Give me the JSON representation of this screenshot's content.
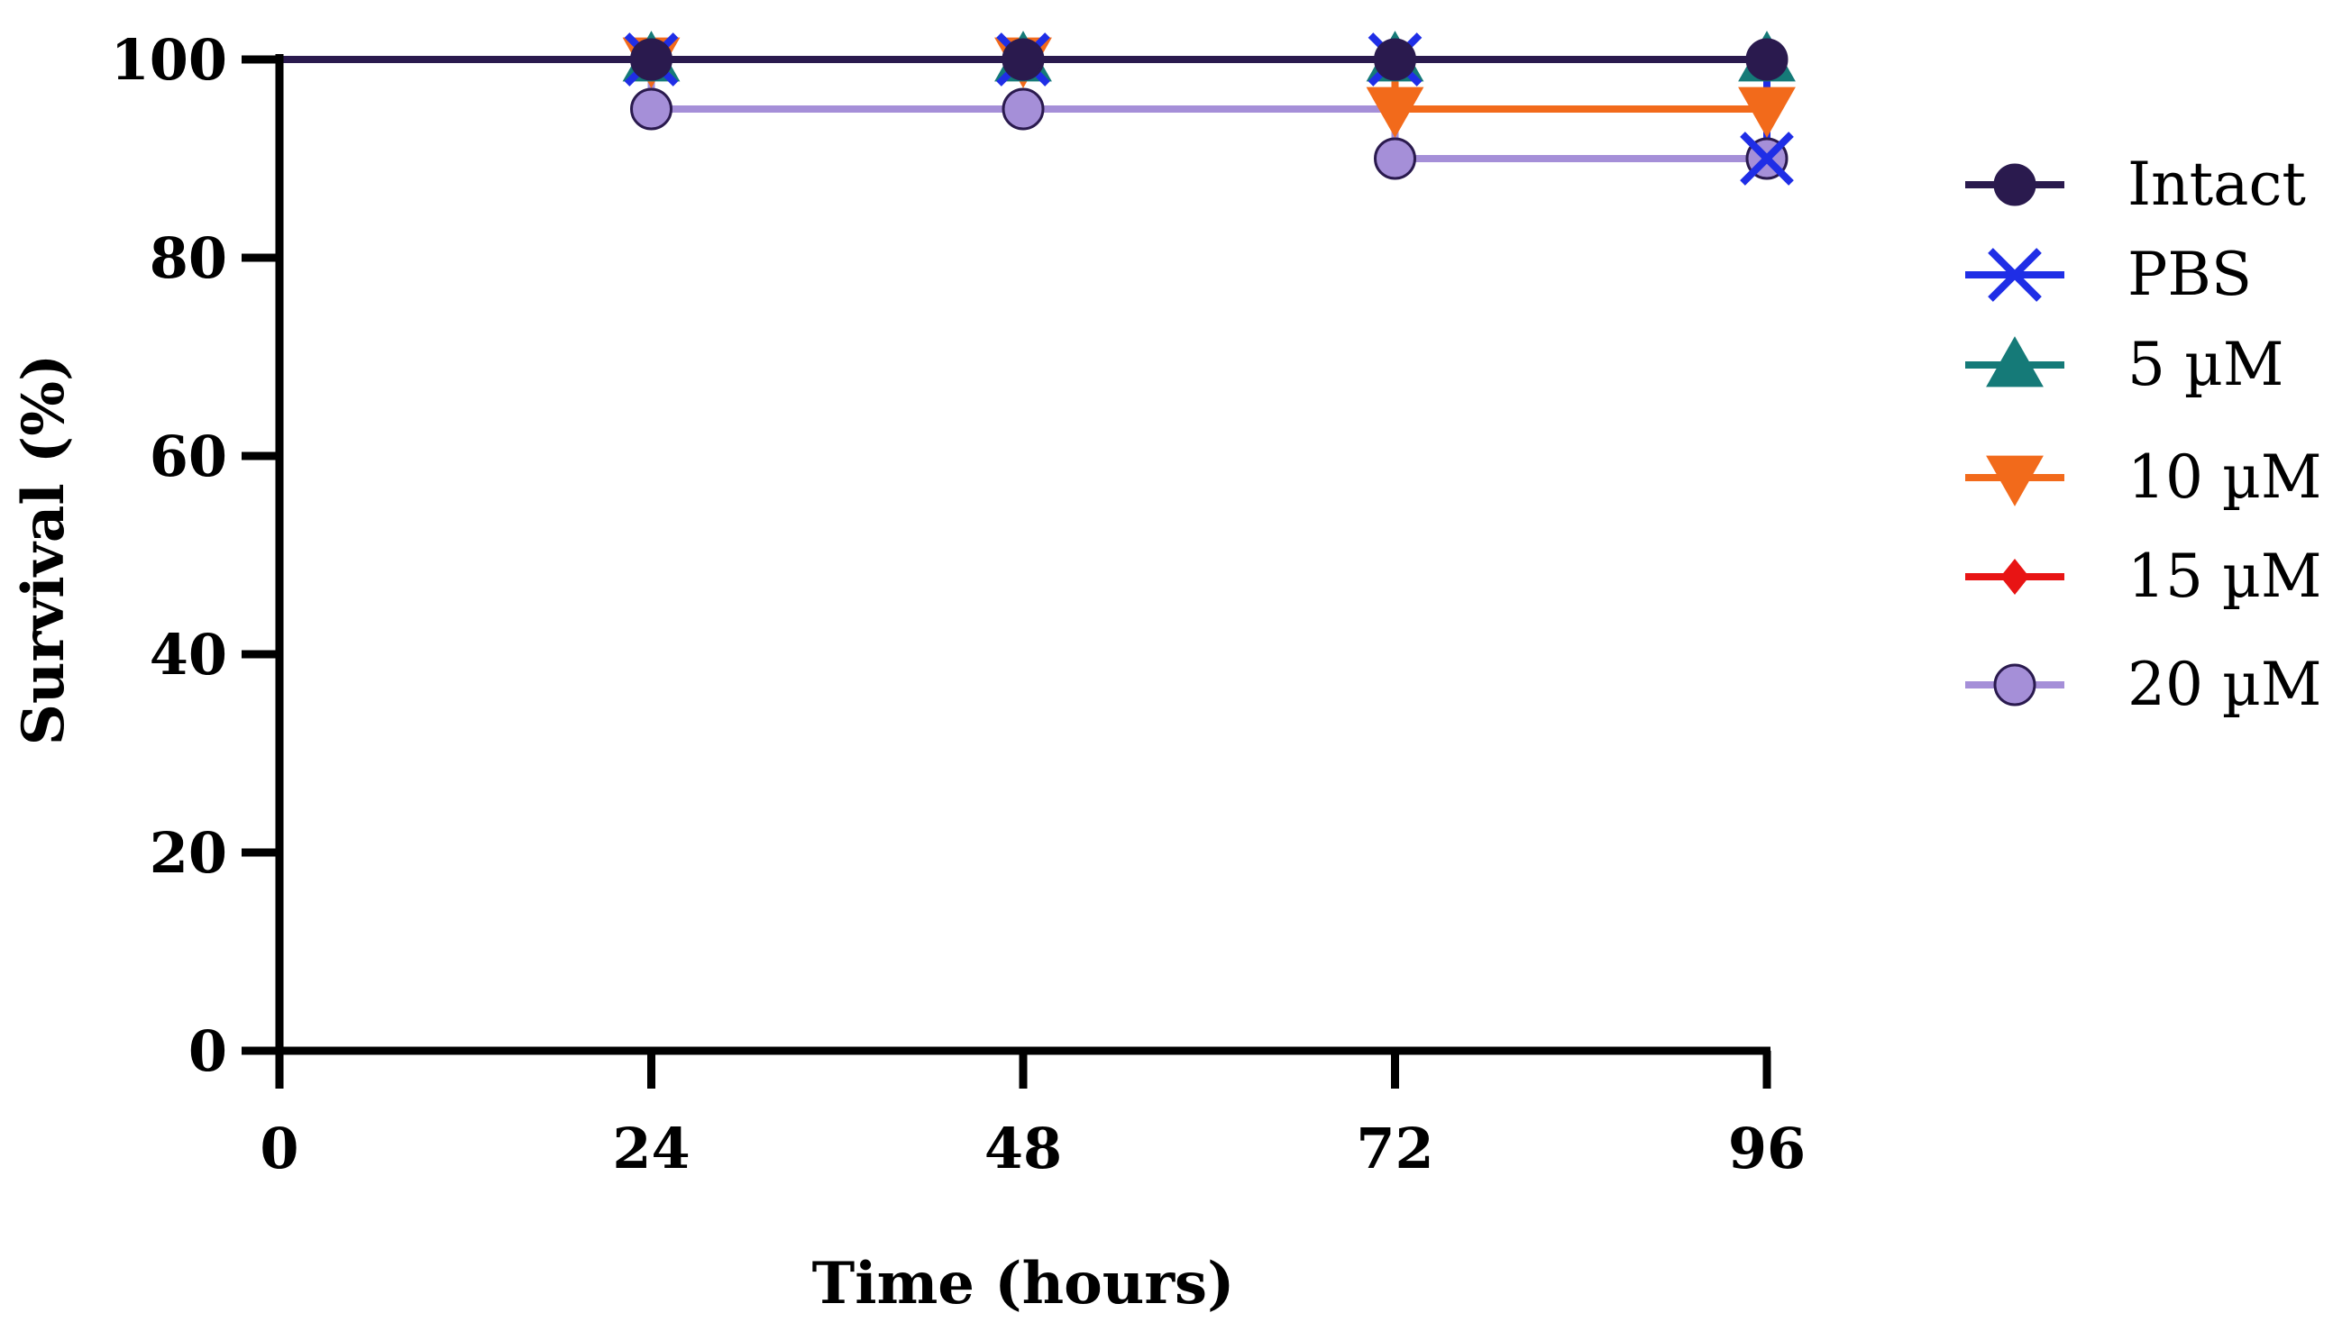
{
  "chart_data": {
    "type": "line",
    "xlabel": "Time (hours)",
    "ylabel": "Survival (%)",
    "xlim": [
      0,
      96
    ],
    "ylim": [
      0,
      100
    ],
    "x_ticks": [
      "0",
      "24",
      "48",
      "72",
      "96"
    ],
    "y_ticks": [
      "0",
      "20",
      "40",
      "60",
      "80",
      "100"
    ],
    "grid": false,
    "legend_position": "right",
    "series": [
      {
        "name": "Intact",
        "color": "#2a1a4e",
        "marker": "circle",
        "x": [
          0,
          24,
          48,
          72,
          96
        ],
        "y": [
          100,
          100,
          100,
          100,
          100
        ]
      },
      {
        "name": "PBS",
        "color": "#1f2ee6",
        "marker": "x",
        "x": [
          0,
          24,
          48,
          72,
          96
        ],
        "y": [
          100,
          100,
          100,
          100,
          90
        ]
      },
      {
        "name": " 5 µM",
        "color": "#157a78",
        "marker": "triangle-up",
        "x": [
          0,
          24,
          48,
          72,
          96
        ],
        "y": [
          100,
          100,
          100,
          100,
          100
        ]
      },
      {
        "name": "10 µM",
        "color": "#f26a1b",
        "marker": "triangle-down",
        "x": [
          0,
          24,
          48,
          72,
          96
        ],
        "y": [
          100,
          100,
          100,
          95,
          95
        ]
      },
      {
        "name": "15 µM",
        "color": "#e81414",
        "marker": "diamond",
        "x": [
          0,
          24,
          48,
          72,
          96
        ],
        "y": [
          100,
          100,
          100,
          100,
          100
        ]
      },
      {
        "name": "20 µM",
        "color": "#a58fd8",
        "marker": "circle",
        "x": [
          0,
          24,
          48,
          72,
          96
        ],
        "y": [
          100,
          95,
          95,
          90,
          90
        ]
      }
    ]
  }
}
